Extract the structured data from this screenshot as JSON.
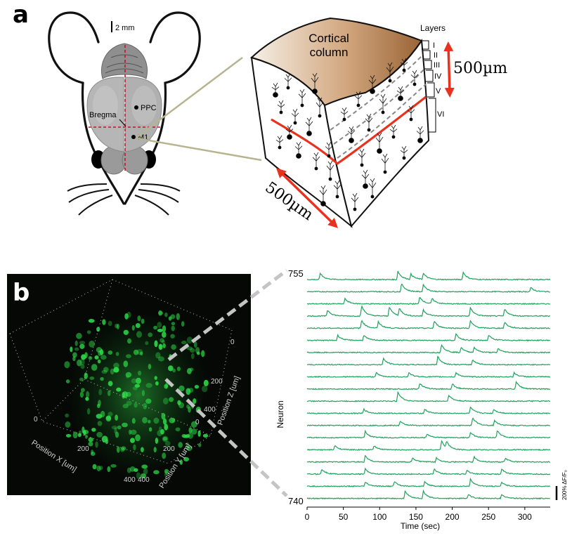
{
  "panel_a": {
    "label": "a",
    "scale_bar": "2 mm",
    "brain_labels": {
      "ppc": "PPC",
      "bregma": "Bregma",
      "m1": "M1"
    },
    "column_title_line1": "Cortical",
    "column_title_line2": "column",
    "layers_title": "Layers",
    "layers": [
      "I",
      "II",
      "III",
      "IV",
      "V",
      "VI"
    ],
    "depth_label": "500µm",
    "width_label": "500µm"
  },
  "panel_b": {
    "label": "b",
    "volume_axes": {
      "x_label": "Position X [um]",
      "y_label": "Position Y [um]",
      "z_label": "Position Z [um]",
      "x_ticks": [
        "0",
        "200",
        "400"
      ],
      "y_ticks": [
        "0",
        "200",
        "400"
      ],
      "z_ticks": [
        "0",
        "200",
        "400"
      ]
    },
    "colors": {
      "trace": "#1fa35c",
      "volume_bg": "#050805",
      "cell": "#2ee04a",
      "dash": "#c4c4c4",
      "arrow": "#e8321e"
    }
  },
  "chart_data": {
    "type": "line",
    "xlabel": "Time (sec)",
    "ylabel": "Neuron",
    "xlim": [
      0,
      335
    ],
    "x_ticks": [
      0,
      50,
      100,
      150,
      200,
      250,
      300
    ],
    "top_neuron_label": "755",
    "bottom_neuron_label": "740",
    "scale_bar_label": "200% ΔF/F₀",
    "series": [
      {
        "events": [
          [
            18,
            0.6
          ],
          [
            125,
            0.8
          ],
          [
            143,
            0.5
          ],
          [
            160,
            0.6
          ],
          [
            215,
            0.7
          ]
        ]
      },
      {
        "events": [
          [
            130,
            0.8
          ],
          [
            160,
            0.7
          ],
          [
            308,
            0.4
          ]
        ]
      },
      {
        "events": [
          [
            52,
            0.5
          ],
          [
            155,
            0.7
          ],
          [
            172,
            0.5
          ]
        ]
      },
      {
        "events": [
          [
            28,
            0.6
          ],
          [
            75,
            1.0
          ],
          [
            113,
            0.9
          ],
          [
            127,
            0.7
          ],
          [
            160,
            0.6
          ],
          [
            225,
            0.8
          ],
          [
            272,
            0.7
          ]
        ]
      },
      {
        "events": [
          [
            75,
            0.8
          ],
          [
            98,
            0.6
          ],
          [
            175,
            0.7
          ],
          [
            225,
            0.7
          ],
          [
            272,
            0.6
          ]
        ]
      },
      {
        "events": [
          [
            42,
            0.5
          ],
          [
            78,
            0.5
          ],
          [
            205,
            0.6
          ],
          [
            250,
            0.5
          ]
        ]
      },
      {
        "events": [
          [
            185,
            0.8
          ],
          [
            212,
            0.5
          ],
          [
            230,
            0.5
          ],
          [
            263,
            0.4
          ]
        ]
      },
      {
        "events": [
          [
            105,
            0.6
          ],
          [
            180,
            0.8
          ],
          [
            228,
            0.5
          ]
        ]
      },
      {
        "events": [
          [
            95,
            0.4
          ],
          [
            140,
            0.4
          ],
          [
            205,
            0.4
          ],
          [
            285,
            0.4
          ]
        ]
      },
      {
        "events": [
          [
            155,
            0.6
          ],
          [
            200,
            0.5
          ],
          [
            288,
            0.7
          ]
        ]
      },
      {
        "events": [
          [
            125,
            0.9
          ],
          [
            195,
            0.6
          ]
        ]
      },
      {
        "events": [
          [
            78,
            0.4
          ],
          [
            162,
            0.4
          ],
          [
            225,
            0.6
          ],
          [
            257,
            0.4
          ]
        ]
      },
      {
        "events": [
          [
            128,
            0.4
          ],
          [
            228,
            0.8
          ],
          [
            258,
            0.5
          ]
        ]
      },
      {
        "events": [
          [
            80,
            0.6
          ],
          [
            165,
            0.4
          ],
          [
            225,
            0.5
          ],
          [
            262,
            0.7
          ]
        ]
      },
      {
        "events": [
          [
            38,
            0.4
          ],
          [
            92,
            0.4
          ],
          [
            185,
            0.9
          ],
          [
            192,
            0.6
          ]
        ]
      },
      {
        "events": [
          [
            80,
            0.6
          ],
          [
            145,
            0.4
          ],
          [
            178,
            0.4
          ],
          [
            230,
            0.5
          ],
          [
            273,
            0.4
          ]
        ]
      },
      {
        "events": [
          [
            20,
            0.5
          ],
          [
            80,
            0.5
          ],
          [
            175,
            0.5
          ],
          [
            220,
            0.4
          ],
          [
            268,
            0.5
          ]
        ]
      },
      {
        "events": [
          [
            80,
            0.4
          ],
          [
            120,
            0.5
          ],
          [
            162,
            0.4
          ],
          [
            225,
            0.7
          ],
          [
            268,
            0.4
          ]
        ]
      },
      {
        "events": [
          [
            135,
            0.7
          ],
          [
            160,
            0.7
          ],
          [
            222,
            0.4
          ],
          [
            268,
            0.4
          ]
        ]
      }
    ]
  }
}
